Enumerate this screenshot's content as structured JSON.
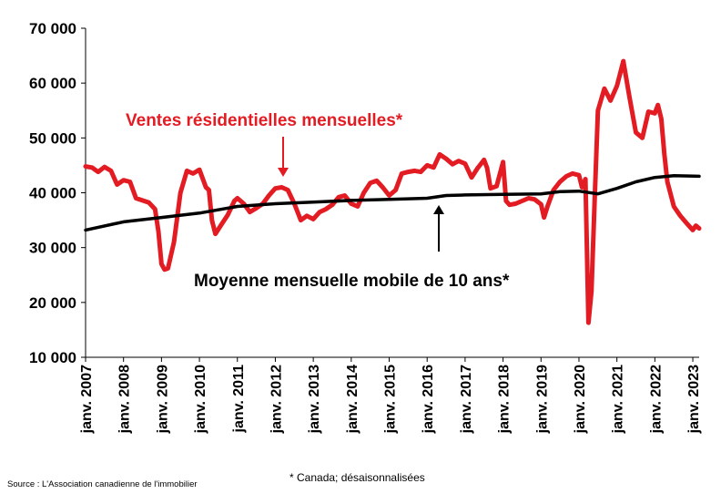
{
  "chart_data": {
    "type": "line",
    "x_labels": [
      "janv. 2007",
      "janv. 2008",
      "janv. 2009",
      "janv. 2010",
      "janv. 2011",
      "janv. 2012",
      "janv. 2013",
      "janv. 2014",
      "janv. 2015",
      "janv. 2016",
      "janv. 2017",
      "janv. 2018",
      "janv. 2019",
      "janv. 2020",
      "janv. 2021",
      "janv. 2022",
      "janv. 2023"
    ],
    "y_ticks": [
      10000,
      20000,
      30000,
      40000,
      50000,
      60000,
      70000
    ],
    "y_tick_labels": [
      "10 000",
      "20 000",
      "30 000",
      "40 000",
      "50 000",
      "60 000",
      "70 000"
    ],
    "ylim": [
      10000,
      70000
    ],
    "xlim": [
      2007.0,
      2023.167
    ],
    "grid": false,
    "series": [
      {
        "name": "Ventes résidentielles mensuelles*",
        "color": "#e31b23",
        "points": [
          [
            2007.0,
            44800
          ],
          [
            2007.17,
            44600
          ],
          [
            2007.33,
            43800
          ],
          [
            2007.5,
            44700
          ],
          [
            2007.67,
            44000
          ],
          [
            2007.83,
            41500
          ],
          [
            2008.0,
            42300
          ],
          [
            2008.17,
            42000
          ],
          [
            2008.33,
            39000
          ],
          [
            2008.5,
            38600
          ],
          [
            2008.67,
            38200
          ],
          [
            2008.83,
            37000
          ],
          [
            2008.92,
            33000
          ],
          [
            2009.0,
            27000
          ],
          [
            2009.08,
            26000
          ],
          [
            2009.17,
            26200
          ],
          [
            2009.33,
            31000
          ],
          [
            2009.5,
            40000
          ],
          [
            2009.67,
            44000
          ],
          [
            2009.83,
            43500
          ],
          [
            2010.0,
            44200
          ],
          [
            2010.17,
            41000
          ],
          [
            2010.25,
            40500
          ],
          [
            2010.33,
            35000
          ],
          [
            2010.42,
            32500
          ],
          [
            2010.58,
            34200
          ],
          [
            2010.75,
            36000
          ],
          [
            2010.92,
            38500
          ],
          [
            2011.0,
            39000
          ],
          [
            2011.17,
            38000
          ],
          [
            2011.33,
            36500
          ],
          [
            2011.5,
            37200
          ],
          [
            2011.67,
            38000
          ],
          [
            2011.83,
            39500
          ],
          [
            2012.0,
            40800
          ],
          [
            2012.17,
            41000
          ],
          [
            2012.33,
            40500
          ],
          [
            2012.5,
            38000
          ],
          [
            2012.67,
            35000
          ],
          [
            2012.83,
            35800
          ],
          [
            2013.0,
            35200
          ],
          [
            2013.17,
            36500
          ],
          [
            2013.33,
            37000
          ],
          [
            2013.5,
            37800
          ],
          [
            2013.67,
            39200
          ],
          [
            2013.83,
            39500
          ],
          [
            2014.0,
            38000
          ],
          [
            2014.17,
            37500
          ],
          [
            2014.33,
            40000
          ],
          [
            2014.5,
            41800
          ],
          [
            2014.67,
            42200
          ],
          [
            2014.83,
            41000
          ],
          [
            2015.0,
            39500
          ],
          [
            2015.17,
            40500
          ],
          [
            2015.33,
            43500
          ],
          [
            2015.5,
            43800
          ],
          [
            2015.67,
            44000
          ],
          [
            2015.83,
            43800
          ],
          [
            2016.0,
            45000
          ],
          [
            2016.17,
            44600
          ],
          [
            2016.33,
            47000
          ],
          [
            2016.5,
            46200
          ],
          [
            2016.67,
            45200
          ],
          [
            2016.83,
            45800
          ],
          [
            2017.0,
            45300
          ],
          [
            2017.17,
            42800
          ],
          [
            2017.33,
            44500
          ],
          [
            2017.5,
            46000
          ],
          [
            2017.58,
            44500
          ],
          [
            2017.67,
            40800
          ],
          [
            2017.83,
            41200
          ],
          [
            2018.0,
            45600
          ],
          [
            2018.08,
            38500
          ],
          [
            2018.17,
            37800
          ],
          [
            2018.33,
            38000
          ],
          [
            2018.5,
            38500
          ],
          [
            2018.67,
            39000
          ],
          [
            2018.83,
            38800
          ],
          [
            2019.0,
            37900
          ],
          [
            2019.08,
            35500
          ],
          [
            2019.17,
            37500
          ],
          [
            2019.33,
            40500
          ],
          [
            2019.5,
            42000
          ],
          [
            2019.67,
            43000
          ],
          [
            2019.83,
            43500
          ],
          [
            2020.0,
            43200
          ],
          [
            2020.08,
            41000
          ],
          [
            2020.17,
            42500
          ],
          [
            2020.25,
            16300
          ],
          [
            2020.33,
            22000
          ],
          [
            2020.42,
            40000
          ],
          [
            2020.5,
            55000
          ],
          [
            2020.67,
            59000
          ],
          [
            2020.83,
            56800
          ],
          [
            2021.0,
            59500
          ],
          [
            2021.17,
            64000
          ],
          [
            2021.33,
            57500
          ],
          [
            2021.5,
            51000
          ],
          [
            2021.67,
            50000
          ],
          [
            2021.83,
            54800
          ],
          [
            2022.0,
            54500
          ],
          [
            2022.08,
            56000
          ],
          [
            2022.17,
            53500
          ],
          [
            2022.25,
            47000
          ],
          [
            2022.33,
            42000
          ],
          [
            2022.5,
            37500
          ],
          [
            2022.67,
            35800
          ],
          [
            2022.83,
            34500
          ],
          [
            2023.0,
            33200
          ],
          [
            2023.08,
            34000
          ],
          [
            2023.167,
            33500
          ]
        ]
      },
      {
        "name": "Moyenne mensuelle mobile de 10 ans*",
        "color": "#000000",
        "points": [
          [
            2007.0,
            33200
          ],
          [
            2008.0,
            34700
          ],
          [
            2009.0,
            35500
          ],
          [
            2010.0,
            36300
          ],
          [
            2011.0,
            37500
          ],
          [
            2012.0,
            38000
          ],
          [
            2013.0,
            38300
          ],
          [
            2014.0,
            38600
          ],
          [
            2015.0,
            38800
          ],
          [
            2016.0,
            39000
          ],
          [
            2016.5,
            39500
          ],
          [
            2017.0,
            39600
          ],
          [
            2018.0,
            39700
          ],
          [
            2019.0,
            39800
          ],
          [
            2019.5,
            40200
          ],
          [
            2020.0,
            40300
          ],
          [
            2020.5,
            39800
          ],
          [
            2021.0,
            40800
          ],
          [
            2021.5,
            42000
          ],
          [
            2022.0,
            42800
          ],
          [
            2022.5,
            43100
          ],
          [
            2023.167,
            43000
          ]
        ]
      }
    ],
    "annotations": {
      "red_label": "Ventes résidentielles mensuelles*",
      "black_label": "Moyenne mensuelle mobile de 10 ans*"
    }
  },
  "footer": {
    "source": "Source : L'Association canadienne de l'immobilier",
    "note": "* Canada; désaisonnalisées"
  }
}
